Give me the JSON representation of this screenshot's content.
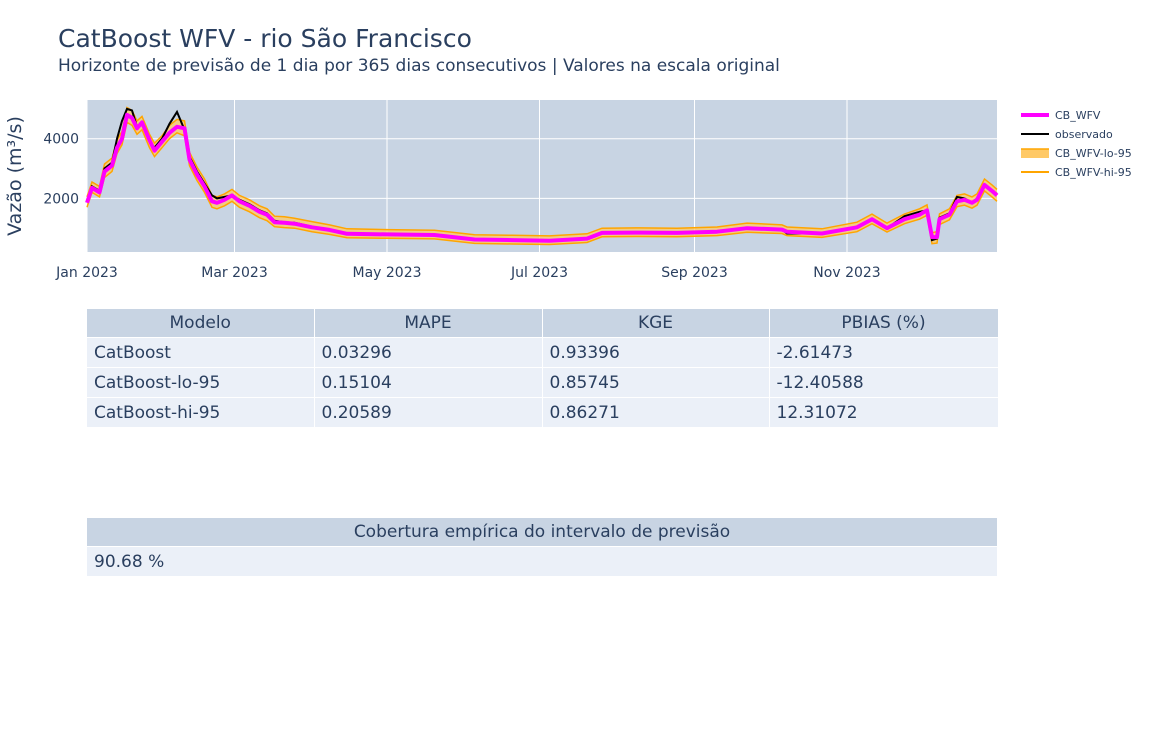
{
  "header": {
    "title": "CatBoost WFV - rio São Francisco",
    "subtitle": "Horizonte de previsão de 1 dia por 365 dias consecutivos | Valores na escala original"
  },
  "chart_data": {
    "type": "line",
    "title": "CatBoost WFV - rio São Francisco",
    "subtitle": "Horizonte de previsão de 1 dia por 365 dias consecutivos | Valores na escala original",
    "ylabel": "Vazão (m³/s)",
    "xlabel": "",
    "x_range": [
      "2023-01-01",
      "2023-12-31"
    ],
    "y_range": [
      200,
      5300
    ],
    "x_ticks": [
      {
        "date": "2023-01-01",
        "label": "Jan 2023"
      },
      {
        "date": "2023-03-01",
        "label": "Mar 2023"
      },
      {
        "date": "2023-05-01",
        "label": "May 2023"
      },
      {
        "date": "2023-07-01",
        "label": "Jul 2023"
      },
      {
        "date": "2023-09-01",
        "label": "Sep 2023"
      },
      {
        "date": "2023-11-01",
        "label": "Nov 2023"
      }
    ],
    "y_ticks": [
      2000,
      4000
    ],
    "grid": true,
    "legend_position": "right",
    "series": [
      {
        "name": "CB_WFV",
        "color": "#ff00ff"
      },
      {
        "name": "observado",
        "color": "#000000"
      },
      {
        "name": "CB_WFV-lo-95",
        "color": "#ffa500"
      },
      {
        "name": "CB_WFV-hi-95",
        "color": "#ffa500"
      }
    ],
    "points": [
      {
        "x": "2023-01-01",
        "observado": 1900,
        "CB_WFV": 1850,
        "lo": 1700,
        "hi": 2050
      },
      {
        "x": "2023-01-03",
        "observado": 2400,
        "CB_WFV": 2350,
        "lo": 2200,
        "hi": 2550
      },
      {
        "x": "2023-01-06",
        "observado": 2250,
        "CB_WFV": 2200,
        "lo": 2050,
        "hi": 2400
      },
      {
        "x": "2023-01-08",
        "observado": 3000,
        "CB_WFV": 2900,
        "lo": 2700,
        "hi": 3150
      },
      {
        "x": "2023-01-11",
        "observado": 3200,
        "CB_WFV": 3100,
        "lo": 2900,
        "hi": 3350
      },
      {
        "x": "2023-01-13",
        "observado": 4000,
        "CB_WFV": 3700,
        "lo": 3500,
        "hi": 3950
      },
      {
        "x": "2023-01-15",
        "observado": 4600,
        "CB_WFV": 4000,
        "lo": 3800,
        "hi": 4250
      },
      {
        "x": "2023-01-17",
        "observado": 5000,
        "CB_WFV": 4800,
        "lo": 4550,
        "hi": 5050
      },
      {
        "x": "2023-01-19",
        "observado": 4950,
        "CB_WFV": 4700,
        "lo": 4450,
        "hi": 4950
      },
      {
        "x": "2023-01-21",
        "observado": 4400,
        "CB_WFV": 4350,
        "lo": 4150,
        "hi": 4600
      },
      {
        "x": "2023-01-23",
        "observado": 4500,
        "CB_WFV": 4550,
        "lo": 4300,
        "hi": 4750
      },
      {
        "x": "2023-01-26",
        "observado": 3900,
        "CB_WFV": 3950,
        "lo": 3700,
        "hi": 4150
      },
      {
        "x": "2023-01-28",
        "observado": 3700,
        "CB_WFV": 3600,
        "lo": 3400,
        "hi": 3850
      },
      {
        "x": "2023-01-31",
        "observado": 4000,
        "CB_WFV": 3900,
        "lo": 3700,
        "hi": 4100
      },
      {
        "x": "2023-02-03",
        "observado": 4500,
        "CB_WFV": 4200,
        "lo": 4000,
        "hi": 4450
      },
      {
        "x": "2023-02-06",
        "observado": 4900,
        "CB_WFV": 4400,
        "lo": 4200,
        "hi": 4650
      },
      {
        "x": "2023-02-09",
        "observado": 4300,
        "CB_WFV": 4350,
        "lo": 4100,
        "hi": 4600
      },
      {
        "x": "2023-02-11",
        "observado": 3400,
        "CB_WFV": 3300,
        "lo": 3100,
        "hi": 3550
      },
      {
        "x": "2023-02-14",
        "observado": 2900,
        "CB_WFV": 2800,
        "lo": 2600,
        "hi": 3050
      },
      {
        "x": "2023-02-17",
        "observado": 2500,
        "CB_WFV": 2400,
        "lo": 2200,
        "hi": 2650
      },
      {
        "x": "2023-02-20",
        "observado": 2100,
        "CB_WFV": 1900,
        "lo": 1700,
        "hi": 2100
      },
      {
        "x": "2023-02-22",
        "observado": 2000,
        "CB_WFV": 1850,
        "lo": 1650,
        "hi": 2050
      },
      {
        "x": "2023-02-25",
        "observado": 2050,
        "CB_WFV": 1950,
        "lo": 1750,
        "hi": 2150
      },
      {
        "x": "2023-02-28",
        "observado": 2100,
        "CB_WFV": 2100,
        "lo": 1900,
        "hi": 2300
      },
      {
        "x": "2023-03-03",
        "observado": 1950,
        "CB_WFV": 1900,
        "lo": 1700,
        "hi": 2100
      },
      {
        "x": "2023-03-07",
        "observado": 1800,
        "CB_WFV": 1750,
        "lo": 1550,
        "hi": 1950
      },
      {
        "x": "2023-03-11",
        "observado": 1600,
        "CB_WFV": 1550,
        "lo": 1350,
        "hi": 1750
      },
      {
        "x": "2023-03-14",
        "observado": 1500,
        "CB_WFV": 1450,
        "lo": 1250,
        "hi": 1650
      },
      {
        "x": "2023-03-17",
        "observado": 1250,
        "CB_WFV": 1200,
        "lo": 1050,
        "hi": 1400
      },
      {
        "x": "2023-03-21",
        "observado": 1200,
        "CB_WFV": 1180,
        "lo": 1020,
        "hi": 1380
      },
      {
        "x": "2023-03-25",
        "observado": 1180,
        "CB_WFV": 1150,
        "lo": 1000,
        "hi": 1330
      },
      {
        "x": "2023-04-01",
        "observado": 1050,
        "CB_WFV": 1030,
        "lo": 880,
        "hi": 1220
      },
      {
        "x": "2023-04-08",
        "observado": 950,
        "CB_WFV": 940,
        "lo": 790,
        "hi": 1110
      },
      {
        "x": "2023-04-15",
        "observado": 820,
        "CB_WFV": 810,
        "lo": 680,
        "hi": 980
      },
      {
        "x": "2023-05-01",
        "observado": 800,
        "CB_WFV": 790,
        "lo": 660,
        "hi": 950
      },
      {
        "x": "2023-05-20",
        "observado": 780,
        "CB_WFV": 770,
        "lo": 640,
        "hi": 930
      },
      {
        "x": "2023-06-05",
        "observado": 620,
        "CB_WFV": 620,
        "lo": 490,
        "hi": 780
      },
      {
        "x": "2023-06-20",
        "observado": 600,
        "CB_WFV": 600,
        "lo": 470,
        "hi": 760
      },
      {
        "x": "2023-07-05",
        "observado": 580,
        "CB_WFV": 580,
        "lo": 450,
        "hi": 740
      },
      {
        "x": "2023-07-20",
        "observado": 650,
        "CB_WFV": 650,
        "lo": 520,
        "hi": 810
      },
      {
        "x": "2023-07-26",
        "observado": 850,
        "CB_WFV": 840,
        "lo": 710,
        "hi": 1000
      },
      {
        "x": "2023-08-10",
        "observado": 850,
        "CB_WFV": 850,
        "lo": 720,
        "hi": 1010
      },
      {
        "x": "2023-08-25",
        "observado": 840,
        "CB_WFV": 840,
        "lo": 710,
        "hi": 1000
      },
      {
        "x": "2023-09-10",
        "observado": 880,
        "CB_WFV": 880,
        "lo": 750,
        "hi": 1040
      },
      {
        "x": "2023-09-22",
        "observado": 1000,
        "CB_WFV": 1000,
        "lo": 860,
        "hi": 1170
      },
      {
        "x": "2023-10-06",
        "observado": 950,
        "CB_WFV": 950,
        "lo": 820,
        "hi": 1110
      },
      {
        "x": "2023-10-08",
        "observado": 820,
        "CB_WFV": 880,
        "lo": 750,
        "hi": 1040
      },
      {
        "x": "2023-10-22",
        "observado": 820,
        "CB_WFV": 820,
        "lo": 690,
        "hi": 980
      },
      {
        "x": "2023-11-05",
        "observado": 1050,
        "CB_WFV": 1030,
        "lo": 880,
        "hi": 1200
      },
      {
        "x": "2023-11-11",
        "observado": 1300,
        "CB_WFV": 1300,
        "lo": 1150,
        "hi": 1470
      },
      {
        "x": "2023-11-17",
        "observado": 1000,
        "CB_WFV": 1000,
        "lo": 870,
        "hi": 1170
      },
      {
        "x": "2023-11-24",
        "observado": 1400,
        "CB_WFV": 1300,
        "lo": 1150,
        "hi": 1470
      },
      {
        "x": "2023-11-30",
        "observado": 1550,
        "CB_WFV": 1450,
        "lo": 1300,
        "hi": 1650
      },
      {
        "x": "2023-12-03",
        "observado": 1600,
        "CB_WFV": 1600,
        "lo": 1430,
        "hi": 1780
      },
      {
        "x": "2023-12-05",
        "observado": 600,
        "CB_WFV": 700,
        "lo": 480,
        "hi": 850
      },
      {
        "x": "2023-12-07",
        "observado": 650,
        "CB_WFV": 700,
        "lo": 500,
        "hi": 880
      },
      {
        "x": "2023-12-08",
        "observado": 1350,
        "CB_WFV": 1300,
        "lo": 1120,
        "hi": 1480
      },
      {
        "x": "2023-12-12",
        "observado": 1500,
        "CB_WFV": 1450,
        "lo": 1280,
        "hi": 1650
      },
      {
        "x": "2023-12-15",
        "observado": 2050,
        "CB_WFV": 1900,
        "lo": 1720,
        "hi": 2100
      },
      {
        "x": "2023-12-18",
        "observado": 2000,
        "CB_WFV": 1950,
        "lo": 1770,
        "hi": 2150
      },
      {
        "x": "2023-12-21",
        "observado": 1850,
        "CB_WFV": 1850,
        "lo": 1670,
        "hi": 2050
      },
      {
        "x": "2023-12-23",
        "observado": 2000,
        "CB_WFV": 1950,
        "lo": 1770,
        "hi": 2150
      },
      {
        "x": "2023-12-26",
        "observado": 2450,
        "CB_WFV": 2450,
        "lo": 2250,
        "hi": 2650
      },
      {
        "x": "2023-12-29",
        "observado": 2250,
        "CB_WFV": 2250,
        "lo": 2050,
        "hi": 2450
      },
      {
        "x": "2023-12-31",
        "observado": 2150,
        "CB_WFV": 2100,
        "lo": 1900,
        "hi": 2300
      }
    ]
  },
  "legend": {
    "items": [
      "CB_WFV",
      "observado",
      "CB_WFV-lo-95",
      "CB_WFV-hi-95"
    ]
  },
  "colors": {
    "plot_bg": "#c8d4e3",
    "cb_wfv": "#ff00ff",
    "observado": "#000000",
    "interval": "#ffa500",
    "interval_fill": "#ffc966",
    "table_header": "#c8d4e3",
    "table_cell": "#ebf0f8",
    "text": "#2a3f5f"
  },
  "metrics_table": {
    "headers": [
      "Modelo",
      "MAPE",
      "KGE",
      "PBIAS (%)"
    ],
    "rows": [
      [
        "CatBoost",
        "0.03296",
        "0.93396",
        "-2.61473"
      ],
      [
        "CatBoost-lo-95",
        "0.15104",
        "0.85745",
        "-12.40588"
      ],
      [
        "CatBoost-hi-95",
        "0.20589",
        "0.86271",
        "12.31072"
      ]
    ]
  },
  "coverage_table": {
    "header": "Cobertura empírica do intervalo de previsão",
    "value": "90.68 %"
  }
}
